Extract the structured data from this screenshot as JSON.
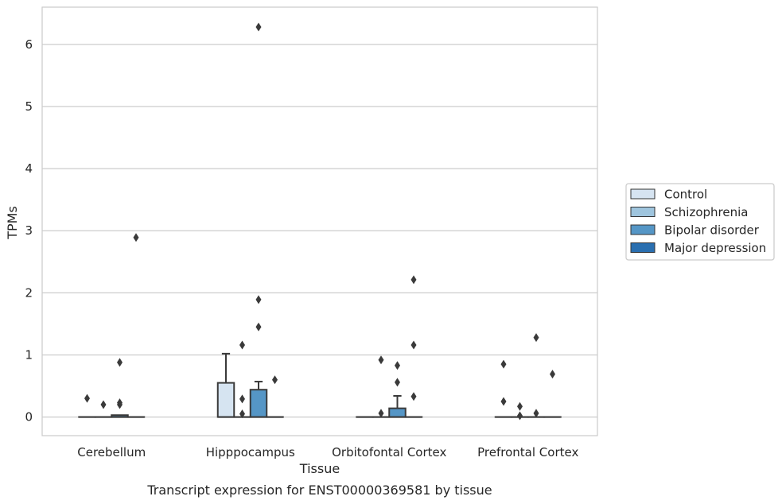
{
  "chart_data": {
    "type": "box",
    "title": "",
    "caption": "Transcript expression for ENST00000369581 by tissue",
    "xlabel": "Tissue",
    "ylabel": "TPMs",
    "ylim": [
      -0.3,
      6.6
    ],
    "yticks": [
      "0",
      "1",
      "2",
      "3",
      "4",
      "5",
      "6"
    ],
    "grid": "horizontal",
    "legend_position": "right",
    "categories": [
      "Cerebellum",
      "Hipppocampus",
      "Orbitofontal Cortex",
      "Prefrontal Cortex"
    ],
    "series": [
      {
        "name": "Control",
        "color": "#d6e4f1",
        "boxes": [
          {
            "q1": 0,
            "median": 0,
            "q3": 0,
            "whisker_low": 0,
            "whisker_high": 0,
            "outliers": [
              0.3
            ]
          },
          {
            "q1": 0,
            "median": 0,
            "q3": 0.55,
            "whisker_low": 0,
            "whisker_high": 1.02,
            "outliers": []
          },
          {
            "q1": 0,
            "median": 0,
            "q3": 0,
            "whisker_low": 0,
            "whisker_high": 0,
            "outliers": []
          },
          {
            "q1": 0,
            "median": 0,
            "q3": 0,
            "whisker_low": 0,
            "whisker_high": 0,
            "outliers": [
              0.85,
              0.25
            ]
          }
        ]
      },
      {
        "name": "Schizophrenia",
        "color": "#9fc5de",
        "boxes": [
          {
            "q1": 0,
            "median": 0,
            "q3": 0,
            "whisker_low": 0,
            "whisker_high": 0,
            "outliers": [
              0.2
            ]
          },
          {
            "q1": 0,
            "median": 0,
            "q3": 0,
            "whisker_low": 0,
            "whisker_high": 0,
            "outliers": [
              1.16,
              0.29,
              0.05
            ]
          },
          {
            "q1": 0,
            "median": 0,
            "q3": 0,
            "whisker_low": 0,
            "whisker_high": 0,
            "outliers": [
              0.92,
              0.06
            ]
          },
          {
            "q1": 0,
            "median": 0,
            "q3": 0,
            "whisker_low": 0,
            "whisker_high": 0,
            "outliers": [
              0.17,
              0.02
            ]
          }
        ]
      },
      {
        "name": "Bipolar disorder",
        "color": "#5596c6",
        "boxes": [
          {
            "q1": 0,
            "median": 0,
            "q3": 0.03,
            "whisker_low": 0,
            "whisker_high": 0.03,
            "outliers": [
              0.88,
              0.23,
              0.2
            ]
          },
          {
            "q1": 0,
            "median": 0,
            "q3": 0.44,
            "whisker_low": 0,
            "whisker_high": 0.57,
            "outliers": [
              6.28,
              1.89,
              1.45
            ]
          },
          {
            "q1": 0,
            "median": 0,
            "q3": 0.14,
            "whisker_low": 0,
            "whisker_high": 0.34,
            "outliers": [
              0.83,
              0.56
            ]
          },
          {
            "q1": 0,
            "median": 0,
            "q3": 0,
            "whisker_low": 0,
            "whisker_high": 0,
            "outliers": [
              1.28,
              0.06
            ]
          }
        ]
      },
      {
        "name": "Major depression",
        "color": "#2a6fb0",
        "boxes": [
          {
            "q1": 0,
            "median": 0,
            "q3": 0,
            "whisker_low": 0,
            "whisker_high": 0,
            "outliers": [
              2.89
            ]
          },
          {
            "q1": 0,
            "median": 0,
            "q3": 0,
            "whisker_low": 0,
            "whisker_high": 0,
            "outliers": [
              0.6
            ]
          },
          {
            "q1": 0,
            "median": 0,
            "q3": 0,
            "whisker_low": 0,
            "whisker_high": 0,
            "outliers": [
              2.21,
              1.16,
              0.33
            ]
          },
          {
            "q1": 0,
            "median": 0,
            "q3": 0,
            "whisker_low": 0,
            "whisker_high": 0,
            "outliers": [
              0.69
            ]
          }
        ]
      }
    ]
  }
}
